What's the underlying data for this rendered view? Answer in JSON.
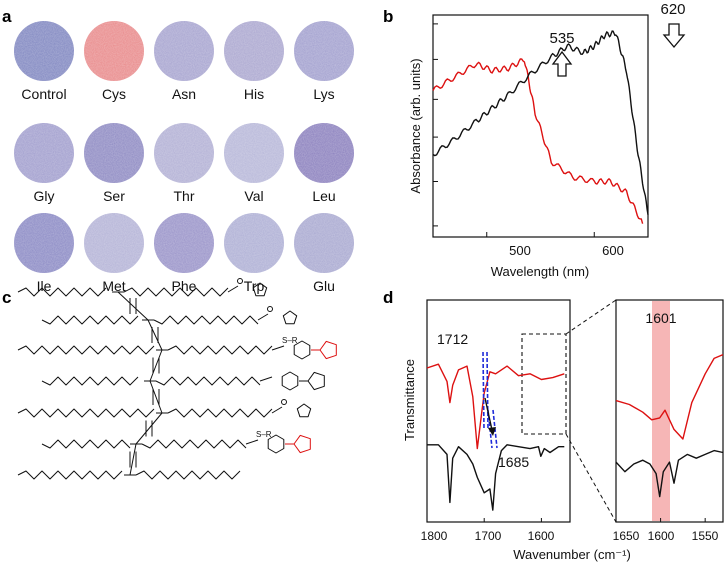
{
  "panels": {
    "a": {
      "label": "a",
      "samples": [
        {
          "name": "Control",
          "color": "#7f86c0"
        },
        {
          "name": "Cys",
          "color": "#e8898a"
        },
        {
          "name": "Asn",
          "color": "#a6a3cf"
        },
        {
          "name": "His",
          "color": "#aaa6cf"
        },
        {
          "name": "Lys",
          "color": "#a19fce"
        },
        {
          "name": "Gly",
          "color": "#a09dcd"
        },
        {
          "name": "Ser",
          "color": "#8d89c2"
        },
        {
          "name": "Thr",
          "color": "#b1afd4"
        },
        {
          "name": "Val",
          "color": "#b6b6d8"
        },
        {
          "name": "Leu",
          "color": "#8a7fbd"
        },
        {
          "name": "Ile",
          "color": "#8a89c4"
        },
        {
          "name": "Met",
          "color": "#b3b2d6"
        },
        {
          "name": "Phe",
          "color": "#9892c8"
        },
        {
          "name": "Trp",
          "color": "#adaed4"
        },
        {
          "name": "Glu",
          "color": "#a8a8d0"
        }
      ]
    },
    "b": {
      "label": "b",
      "xlabel": "Wavelength (nm)",
      "ylabel": "Absorbance (arb. units)",
      "xticks": [
        "500",
        "600"
      ],
      "annotations": [
        {
          "text": "535",
          "x": 535
        },
        {
          "text": "620",
          "x": 620
        }
      ]
    },
    "c": {
      "label": "c",
      "sub_label": "S–R"
    },
    "d": {
      "label": "d",
      "ylabel": "Transmittance",
      "xlabel": "Wavenumber (cm⁻¹)",
      "xticks_left": [
        "1800",
        "1700",
        "1600"
      ],
      "xticks_right": [
        "1650",
        "1600",
        "1550"
      ],
      "annotations": [
        {
          "text": "1712",
          "x": 1712
        },
        {
          "text": "1685",
          "x": 1685
        },
        {
          "text": "1601",
          "x": 1601
        }
      ]
    }
  },
  "chart_data": [
    {
      "type": "line",
      "panel": "b",
      "xlabel": "Wavelength (nm)",
      "ylabel": "Absorbance (arb. units)",
      "xlim": [
        450,
        650
      ],
      "ylim": [
        0,
        1
      ],
      "series": [
        {
          "color": "#dd1111",
          "x": [
            450,
            470,
            490,
            505,
            520,
            535,
            545,
            560,
            580,
            600,
            615,
            630,
            645
          ],
          "y": [
            0.66,
            0.72,
            0.78,
            0.75,
            0.76,
            0.8,
            0.56,
            0.34,
            0.27,
            0.25,
            0.25,
            0.2,
            0.06
          ]
        },
        {
          "color": "#111111",
          "x": [
            450,
            470,
            490,
            505,
            520,
            540,
            560,
            575,
            590,
            600,
            610,
            620,
            630,
            640,
            650
          ],
          "y": [
            0.37,
            0.44,
            0.52,
            0.58,
            0.64,
            0.73,
            0.81,
            0.86,
            0.83,
            0.86,
            0.91,
            0.92,
            0.75,
            0.4,
            0.1
          ]
        }
      ]
    },
    {
      "type": "line",
      "panel": "d-left",
      "xlabel": "Wavenumber (cm⁻¹)",
      "ylabel": "Transmittance",
      "xlim": [
        1800,
        1550
      ],
      "series": [
        {
          "color": "#dd1111",
          "x": [
            1800,
            1780,
            1765,
            1760,
            1755,
            1745,
            1730,
            1720,
            1712,
            1705,
            1700,
            1690,
            1680,
            1660,
            1640,
            1620,
            1600,
            1580,
            1560
          ],
          "y": [
            0.75,
            0.77,
            0.68,
            0.57,
            0.66,
            0.74,
            0.76,
            0.6,
            0.33,
            0.5,
            0.62,
            0.73,
            0.72,
            0.76,
            0.71,
            0.72,
            0.69,
            0.7,
            0.72
          ]
        },
        {
          "color": "#111111",
          "x": [
            1800,
            1780,
            1765,
            1760,
            1755,
            1745,
            1730,
            1720,
            1712,
            1700,
            1690,
            1685,
            1680,
            1670,
            1660,
            1640,
            1620,
            1605,
            1601,
            1595,
            1585,
            1570,
            1560
          ],
          "y": [
            0.35,
            0.35,
            0.3,
            0.05,
            0.28,
            0.34,
            0.3,
            0.25,
            0.18,
            0.1,
            0.12,
            0.01,
            0.2,
            0.32,
            0.35,
            0.34,
            0.33,
            0.34,
            0.29,
            0.33,
            0.31,
            0.34,
            0.34
          ]
        }
      ]
    },
    {
      "type": "line",
      "panel": "d-right",
      "xlim": [
        1650,
        1530
      ],
      "series": [
        {
          "color": "#dd1111",
          "x": [
            1650,
            1635,
            1620,
            1610,
            1601,
            1595,
            1585,
            1575,
            1565,
            1550,
            1540,
            1530
          ],
          "y": [
            0.58,
            0.56,
            0.52,
            0.48,
            0.49,
            0.53,
            0.43,
            0.38,
            0.57,
            0.72,
            0.8,
            0.82
          ]
        },
        {
          "color": "#111111",
          "x": [
            1650,
            1640,
            1630,
            1620,
            1612,
            1605,
            1601,
            1597,
            1590,
            1585,
            1580,
            1570,
            1560,
            1550,
            1540,
            1530
          ],
          "y": [
            0.26,
            0.21,
            0.25,
            0.27,
            0.25,
            0.2,
            0.08,
            0.21,
            0.26,
            0.15,
            0.27,
            0.3,
            0.28,
            0.3,
            0.32,
            0.31
          ]
        }
      ]
    }
  ]
}
